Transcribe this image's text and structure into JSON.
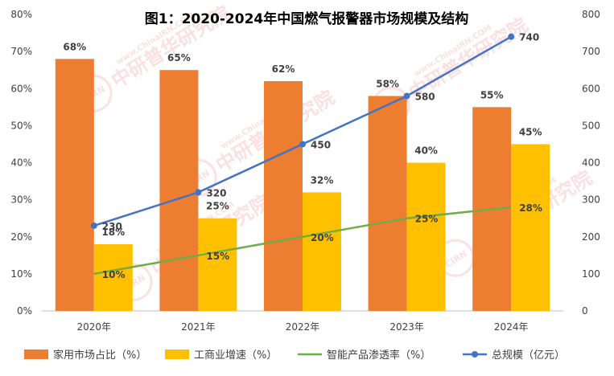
{
  "chart_data": {
    "type": "bar",
    "title": "图1：2020-2024年中国燃气报警器市场规模及结构",
    "categories": [
      "2020年",
      "2021年",
      "2022年",
      "2023年",
      "2024年"
    ],
    "y_left": {
      "ticks": [
        "0%",
        "10%",
        "20%",
        "30%",
        "40%",
        "50%",
        "60%",
        "70%",
        "80%"
      ],
      "ylim": [
        0,
        80
      ]
    },
    "y_right": {
      "ticks": [
        "0",
        "100",
        "200",
        "300",
        "400",
        "500",
        "600",
        "700",
        "800"
      ],
      "ylim": [
        0,
        800
      ]
    },
    "series": [
      {
        "name": "家用市场占比（%）",
        "kind": "bar",
        "axis": "left",
        "color": "#ed7d31",
        "values": [
          68,
          65,
          62,
          58,
          55
        ],
        "labels": [
          "68%",
          "65%",
          "62%",
          "58%",
          "55%"
        ]
      },
      {
        "name": "工商业增速（%）",
        "kind": "bar",
        "axis": "left",
        "color": "#ffc000",
        "values": [
          18,
          25,
          32,
          40,
          45
        ],
        "labels": [
          "18%",
          "25%",
          "32%",
          "40%",
          "45%"
        ]
      },
      {
        "name": "智能产品渗透率（%）",
        "kind": "line",
        "axis": "left",
        "color": "#70ad47",
        "marker": false,
        "values": [
          10,
          15,
          20,
          25,
          28
        ],
        "labels": [
          "10%",
          "15%",
          "20%",
          "25%",
          "28%"
        ]
      },
      {
        "name": "总规模（亿元）",
        "kind": "line",
        "axis": "right",
        "color": "#4472c4",
        "marker": true,
        "values": [
          230,
          320,
          450,
          580,
          740
        ],
        "labels": [
          "230",
          "320",
          "450",
          "580",
          "740"
        ]
      }
    ],
    "grid": false,
    "legend_position": "bottom",
    "watermark": [
      "CIRN",
      "中研普华研究院",
      "www.ChinaIRN.COM"
    ]
  }
}
